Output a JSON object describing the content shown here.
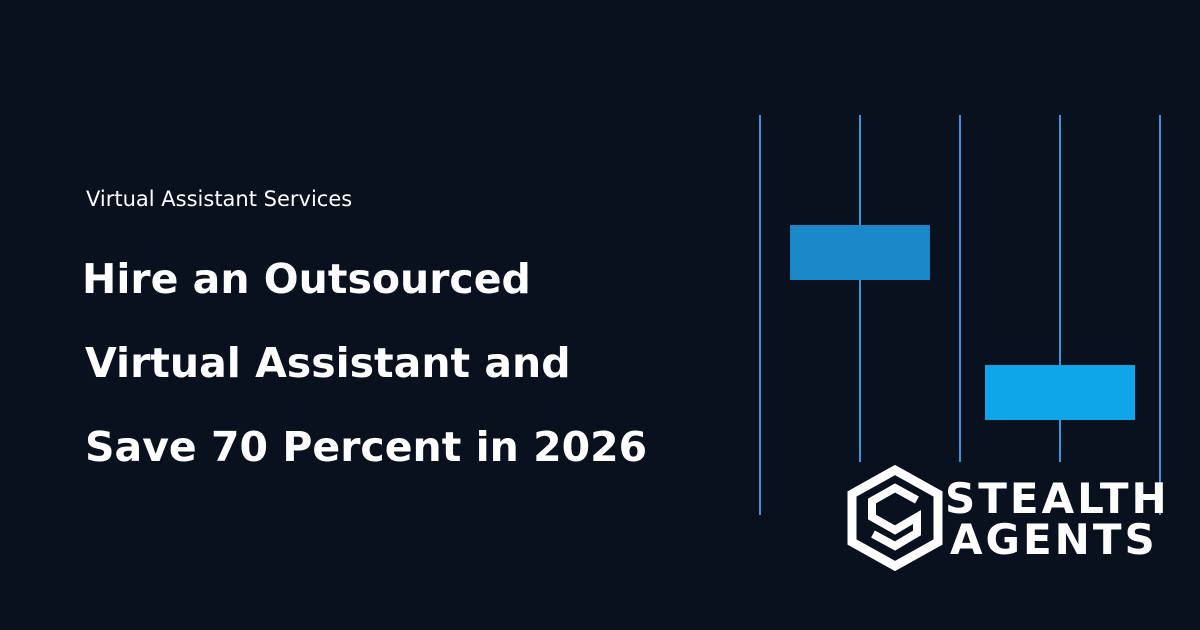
{
  "header": {
    "eyebrow": "Virtual Assistant Services",
    "title_lines": [
      "Hire an Outsourced",
      "Virtual Assistant and",
      "Save 70 Percent in 2026"
    ]
  },
  "logo": {
    "line1": "STEALTH",
    "line2": "AGENTS"
  }
}
